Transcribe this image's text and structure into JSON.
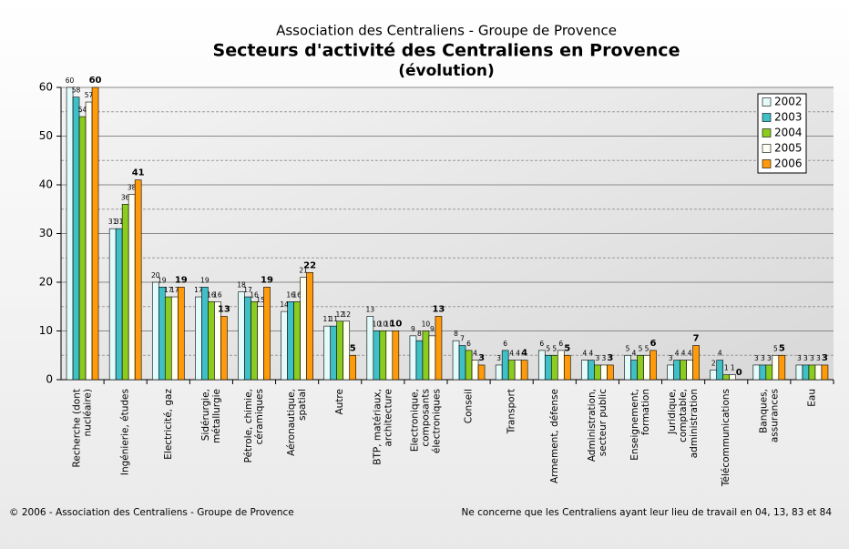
{
  "chart_data": {
    "type": "bar",
    "title": "Association des Centraliens - Groupe de Provence",
    "subtitle": "Secteurs d'activité des Centraliens en Provence",
    "subtitle2": "(évolution)",
    "footer_left": "© 2006 - Association des Centraliens - Groupe de Provence",
    "footer_right": "Ne concerne que les Centraliens ayant leur lieu de travail en 04, 13, 83 et 84",
    "categories": [
      [
        "Recherche (dont",
        "nucléaire)"
      ],
      [
        "Ingénierie, études"
      ],
      [
        "Electricité, gaz"
      ],
      [
        "Sidérurgie,",
        "métallurgie"
      ],
      [
        "Pétrole, chimie,",
        "céramiques"
      ],
      [
        "Aéronautique,",
        "spatial"
      ],
      [
        "Autre"
      ],
      [
        "BTP, matériaux,",
        "architecture"
      ],
      [
        "Electronique,",
        "composants",
        "électroniques"
      ],
      [
        "Conseil"
      ],
      [
        "Transport"
      ],
      [
        "Armement, défense"
      ],
      [
        "Administration,",
        "secteur public"
      ],
      [
        "Enseignement,",
        "formation"
      ],
      [
        "Juridique,",
        "comptable,",
        "administration"
      ],
      [
        "Télécommunications"
      ],
      [
        "Banques,",
        "assurances"
      ],
      [
        "Eau"
      ]
    ],
    "series": [
      {
        "name": "2002",
        "color": "#e4fbfb",
        "values": [
          60,
          31,
          20,
          17,
          18,
          14,
          11,
          13,
          9,
          8,
          3,
          6,
          4,
          5,
          3,
          2,
          3,
          3
        ]
      },
      {
        "name": "2003",
        "color": "#3fbfc6",
        "values": [
          58,
          31,
          19,
          19,
          17,
          16,
          11,
          10,
          8,
          7,
          6,
          5,
          4,
          4,
          4,
          4,
          3,
          3
        ]
      },
      {
        "name": "2004",
        "color": "#8ccc1e",
        "values": [
          54,
          36,
          17,
          16,
          16,
          16,
          12,
          10,
          10,
          6,
          4,
          5,
          3,
          5,
          4,
          1,
          3,
          3
        ]
      },
      {
        "name": "2005",
        "color": "#fffff2",
        "values": [
          57,
          38,
          17,
          16,
          15,
          21,
          12,
          10,
          9,
          4,
          4,
          6,
          3,
          5,
          4,
          1,
          5,
          3
        ]
      },
      {
        "name": "2006",
        "color": "#ff9a0a",
        "values": [
          60,
          41,
          19,
          13,
          19,
          22,
          5,
          10,
          13,
          3,
          4,
          5,
          3,
          6,
          7,
          0,
          5,
          3
        ]
      }
    ],
    "ylim": [
      0,
      60
    ],
    "yticks": [
      0,
      10,
      20,
      30,
      40,
      50,
      60
    ],
    "yminor_ticks": [
      5,
      15,
      25,
      35,
      45,
      55
    ],
    "grid": true,
    "legend": "top-right"
  }
}
